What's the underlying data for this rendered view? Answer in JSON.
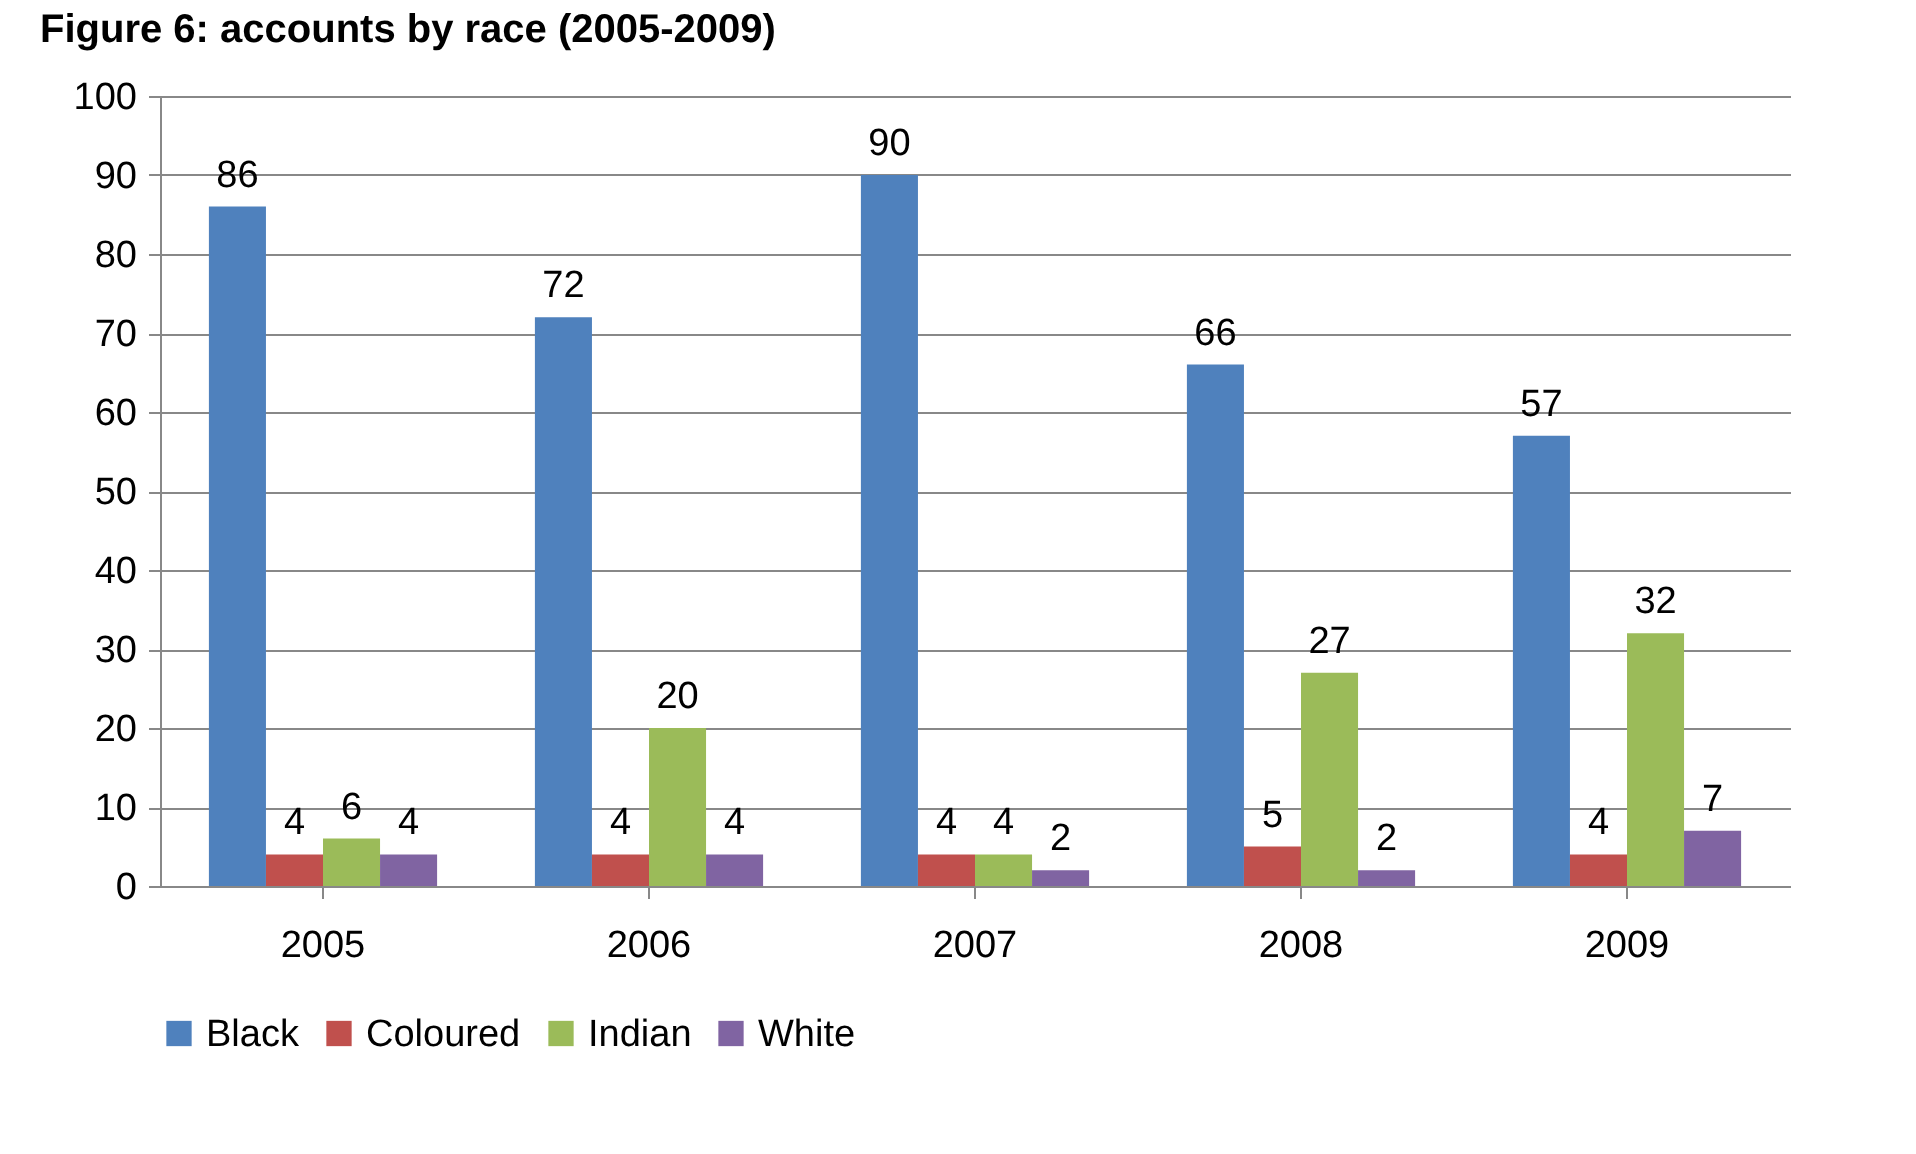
{
  "chart_data": {
    "type": "bar",
    "title": "Figure 6: accounts by race (2005-2009)",
    "categories": [
      "2005",
      "2006",
      "2007",
      "2008",
      "2009"
    ],
    "series": [
      {
        "name": "Black",
        "color": "#4f81bd",
        "values": [
          86,
          72,
          90,
          66,
          57
        ]
      },
      {
        "name": "Coloured",
        "color": "#c0504d",
        "values": [
          4,
          4,
          4,
          5,
          4
        ]
      },
      {
        "name": "Indian",
        "color": "#9bbb59",
        "values": [
          6,
          20,
          4,
          27,
          32
        ]
      },
      {
        "name": "White",
        "color": "#8064a2",
        "values": [
          4,
          4,
          2,
          2,
          7
        ]
      }
    ],
    "ylim": [
      0,
      100
    ],
    "yticks": [
      0,
      10,
      20,
      30,
      40,
      50,
      60,
      70,
      80,
      90,
      100
    ],
    "grid": "y",
    "legend": "bottom",
    "data_labels": true
  }
}
